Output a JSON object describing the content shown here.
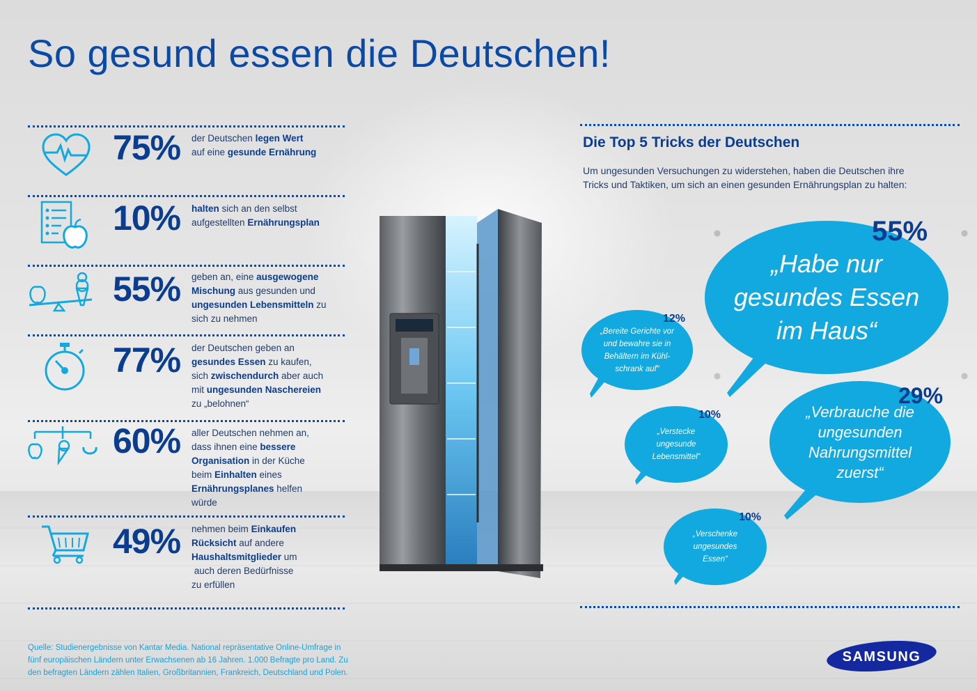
{
  "title": "So gesund essen die Deutschen!",
  "stats": [
    {
      "icon": "heart-pulse-icon",
      "pct": "75%",
      "text_html": "der Deutschen <b>legen Wert</b><br>auf eine <b>gesunde Ernährung</b>"
    },
    {
      "icon": "checklist-apple-icon",
      "pct": "10%",
      "text_html": "<b>halten</b> sich an den selbst<br>aufgestellten <b>Ernährungsplan</b>"
    },
    {
      "icon": "scale-apple-icecream-icon",
      "pct": "55%",
      "text_html": "geben an, eine <b>ausgewogene Mischung</b> aus gesunden und <b>ungesunden Lebensmitteln</b> zu sich zu nehmen"
    },
    {
      "icon": "stopwatch-icon",
      "pct": "77%",
      "text_html": "der Deutschen geben an<br><b>gesundes Essen</b> zu kaufen,<br>sich <b>zwischendurch</b> aber auch<br>mit <b>ungesunden Naschereien</b><br>zu „belohnen“"
    },
    {
      "icon": "food-organization-icon",
      "pct": "60%",
      "text_html": "aller Deutschen nehmen an,<br>dass ihnen eine <b>bessere Organisation</b> in der Küche<br>beim <b>Einhalten</b> eines<br><b>Ernährungsplanes</b> helfen<br>würde"
    },
    {
      "icon": "shopping-cart-icon",
      "pct": "49%",
      "text_html": "nehmen beim <b>Einkaufen Rücksicht</b> auf andere<br><b>Haushaltsmitglieder</b> um<br>&nbsp;auch deren Bedürfnisse<br>zu erfüllen"
    }
  ],
  "tricks": {
    "title": "Die Top 5 Tricks der Deutschen",
    "subtitle": "Um ungesunden Versuchungen zu widerstehen, haben die Deutschen ihre Tricks und Taktiken, um sich an einen gesunden Ernährungsplan zu halten:",
    "items": [
      {
        "pct": "55%",
        "quote": "„Habe nur gesundes Essen im Haus“"
      },
      {
        "pct": "29%",
        "quote": "„Verbrauche die ungesunden Nahrungsmittel zuerst“"
      },
      {
        "pct": "12%",
        "quote": "„Bereite Gerichte vor und bewahre sie in Behältern im Kühl- schrank auf“"
      },
      {
        "pct": "10%",
        "quote": "„Verstecke ungesunde Lebensmittel“"
      },
      {
        "pct": "10%",
        "quote": "„Verschenke ungesundes Essen“"
      }
    ]
  },
  "source": "Quelle: Studienergebnisse von Kantar Media. National repräsentative Online-Umfrage in fünf europäischen Ländern unter Erwachsenen ab 16 Jahren. 1.000 Befragte pro Land. Zu den befragten Ländern zählen Italien, Großbritannien, Frankreich, Deutschland und Polen.",
  "brand": {
    "name": "SAMSUNG",
    "color": "#1428a0"
  },
  "colors": {
    "primary": "#0a3d8f",
    "bubble": "#11a9e0",
    "accent": "#1aa2d8"
  }
}
